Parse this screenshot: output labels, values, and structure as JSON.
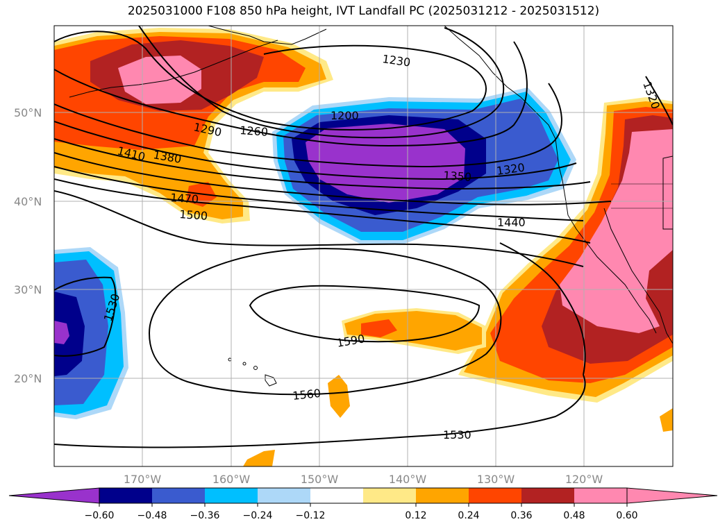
{
  "title": "2025031000 F108 850 hPa height, IVT Landfall PC (2025031212 - 2025031512)",
  "map": {
    "projection": "plate-carree",
    "lon_range": [
      -180,
      -110
    ],
    "lat_range": [
      10,
      60
    ],
    "gridlines": true,
    "lat_ticks": [
      "50°N",
      "40°N",
      "30°N",
      "20°N"
    ],
    "lon_ticks": [
      "170°W",
      "160°W",
      "150°W",
      "140°W",
      "130°W",
      "120°W"
    ]
  },
  "contour_labels": [
    {
      "text": "1230"
    },
    {
      "text": "1200"
    },
    {
      "text": "1260"
    },
    {
      "text": "1290"
    },
    {
      "text": "1410"
    },
    {
      "text": "1380"
    },
    {
      "text": "1470"
    },
    {
      "text": "1500"
    },
    {
      "text": "1350"
    },
    {
      "text": "1320"
    },
    {
      "text": "1440"
    },
    {
      "text": "1320"
    },
    {
      "text": "1530"
    },
    {
      "text": "1590"
    },
    {
      "text": "1560"
    },
    {
      "text": "1530"
    }
  ],
  "colorbar": {
    "ticks": [
      "−0.60",
      "−0.48",
      "−0.36",
      "−0.24",
      "−0.12",
      "0.12",
      "0.24",
      "0.36",
      "0.48",
      "0.60"
    ],
    "colors": [
      "#9932cc",
      "#00008b",
      "#3a5bcf",
      "#00bfff",
      "#add8f8",
      "#ffffff",
      "#ffe987",
      "#ffa500",
      "#ff4500",
      "#b22222",
      "#ff88b0",
      "#ff88b0"
    ]
  }
}
